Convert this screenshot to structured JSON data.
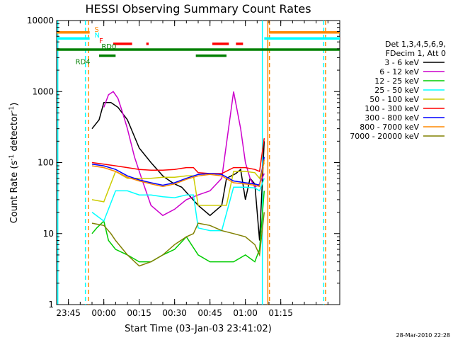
{
  "chart_data": {
    "type": "line",
    "title": "HESSI Observing Summary Count Rates",
    "xlabel": "Start Time (03-Jan-03 23:41:02)",
    "ylabel_main": "Count Rate (s",
    "ylabel_sup1": "-1",
    "ylabel_mid": " detector",
    "ylabel_sup2": "-1",
    "ylabel_end": ")",
    "yscale": "log",
    "ylim": [
      1,
      10000
    ],
    "xlim_minutes": [
      -20,
      100
    ],
    "x_ticks": [
      {
        "m": -15,
        "label": "23:45"
      },
      {
        "m": 0,
        "label": "00:00"
      },
      {
        "m": 15,
        "label": "00:15"
      },
      {
        "m": 30,
        "label": "00:30"
      },
      {
        "m": 45,
        "label": "00:45"
      },
      {
        "m": 60,
        "label": "01:00"
      },
      {
        "m": 75,
        "label": "01:15"
      }
    ],
    "y_ticks": [
      {
        "v": 1,
        "label": "1"
      },
      {
        "v": 10,
        "label": "10"
      },
      {
        "v": 100,
        "label": "100"
      },
      {
        "v": 1000,
        "label": "1000"
      },
      {
        "v": 10000,
        "label": "10000"
      }
    ],
    "legend_header": [
      "Det 1,3,4,5,6,9,",
      "FDecim 1, Att 0"
    ],
    "legend_position": "right",
    "series": [
      {
        "name": "3 - 6 keV",
        "color": "#000000",
        "x": [
          -5,
          -2,
          0,
          3,
          6,
          10,
          15,
          20,
          25,
          28,
          30,
          33,
          36,
          40,
          45,
          50,
          52,
          56,
          58,
          60,
          62,
          64,
          66,
          68
        ],
        "y": [
          300,
          400,
          700,
          700,
          600,
          400,
          160,
          100,
          65,
          55,
          50,
          45,
          35,
          25,
          18,
          25,
          60,
          70,
          80,
          30,
          60,
          50,
          8,
          200
        ]
      },
      {
        "name": "6 - 12 keV",
        "color": "#cc00cc",
        "x": [
          0,
          2,
          4,
          6,
          8,
          10,
          13,
          16,
          20,
          25,
          30,
          35,
          40,
          45,
          50,
          55,
          58,
          60,
          62,
          64,
          66,
          68
        ],
        "y": [
          600,
          900,
          1000,
          800,
          500,
          300,
          120,
          60,
          25,
          18,
          22,
          30,
          35,
          40,
          60,
          1000,
          300,
          100,
          60,
          45,
          50,
          70
        ]
      },
      {
        "name": "12 - 25 keV",
        "color": "#00cc00",
        "x": [
          -5,
          -3,
          0,
          2,
          5,
          10,
          15,
          20,
          25,
          30,
          35,
          40,
          45,
          50,
          55,
          60,
          64,
          66,
          68
        ],
        "y": [
          10,
          12,
          15,
          8,
          6,
          5,
          4,
          4,
          5,
          6,
          9,
          5,
          4,
          4,
          4,
          5,
          4,
          6,
          40
        ]
      },
      {
        "name": "25 - 50 keV",
        "color": "#00ffff",
        "x": [
          -5,
          0,
          5,
          10,
          15,
          20,
          25,
          30,
          35,
          38,
          40,
          45,
          50,
          55,
          60,
          64,
          66,
          68
        ],
        "y": [
          20,
          15,
          40,
          40,
          35,
          35,
          33,
          32,
          35,
          35,
          12,
          11,
          11,
          45,
          45,
          44,
          40,
          60
        ]
      },
      {
        "name": "50 - 100 keV",
        "color": "#cccc00",
        "x": [
          -5,
          0,
          5,
          10,
          15,
          20,
          25,
          30,
          35,
          38,
          40,
          45,
          50,
          52,
          55,
          60,
          64,
          66,
          68
        ],
        "y": [
          30,
          28,
          75,
          60,
          60,
          60,
          62,
          62,
          65,
          65,
          25,
          25,
          25,
          25,
          75,
          75,
          72,
          60,
          100
        ]
      },
      {
        "name": "100 - 300 keV",
        "color": "#ff0000",
        "x": [
          -5,
          0,
          5,
          10,
          15,
          20,
          25,
          30,
          35,
          38,
          40,
          45,
          50,
          55,
          60,
          64,
          66,
          68
        ],
        "y": [
          100,
          95,
          90,
          85,
          80,
          78,
          78,
          80,
          85,
          85,
          72,
          70,
          70,
          85,
          85,
          80,
          75,
          220
        ]
      },
      {
        "name": "300 - 800 keV",
        "color": "#0000ff",
        "x": [
          -5,
          0,
          5,
          10,
          15,
          20,
          25,
          30,
          35,
          40,
          45,
          50,
          55,
          60,
          64,
          66,
          68
        ],
        "y": [
          95,
          90,
          80,
          65,
          57,
          52,
          48,
          52,
          60,
          68,
          70,
          68,
          55,
          52,
          50,
          48,
          120
        ]
      },
      {
        "name": "800 - 7000 keV",
        "color": "#ff8800",
        "x": [
          -5,
          0,
          5,
          10,
          15,
          20,
          25,
          30,
          35,
          40,
          45,
          50,
          55,
          60,
          64,
          66,
          68
        ],
        "y": [
          90,
          85,
          75,
          62,
          55,
          50,
          46,
          50,
          58,
          65,
          68,
          65,
          52,
          50,
          48,
          46,
          110
        ]
      },
      {
        "name": "7000 - 20000 keV",
        "color": "#808000",
        "x": [
          -5,
          0,
          3,
          5,
          10,
          15,
          20,
          25,
          30,
          35,
          38,
          40,
          45,
          50,
          55,
          60,
          64,
          66,
          68
        ],
        "y": [
          14,
          13,
          10,
          8,
          5,
          3.5,
          4,
          5,
          7,
          9,
          10,
          14,
          13,
          11,
          10,
          9,
          7,
          5,
          20
        ]
      }
    ],
    "flags": [
      {
        "label": "S",
        "color": "#ff8800",
        "level": 6800,
        "segments": [
          [
            -20,
            -6
          ],
          [
            70,
            100
          ]
        ]
      },
      {
        "label": "N",
        "color": "#00ffff",
        "level": 5600,
        "segments": [
          [
            -20,
            -6
          ],
          [
            68,
            100
          ]
        ]
      },
      {
        "label": "F",
        "color": "#ff0000",
        "level": 4700,
        "segments": [
          [
            4,
            12
          ],
          [
            18,
            19
          ],
          [
            46,
            53
          ],
          [
            56,
            59
          ]
        ]
      },
      {
        "label": "RD0",
        "color": "#008000",
        "level": 3900,
        "segments": [
          [
            -20,
            100
          ]
        ]
      },
      {
        "label": "RD4",
        "color": "#008000",
        "level": 3200,
        "segments": [
          [
            -2,
            5
          ],
          [
            39,
            52
          ]
        ]
      }
    ],
    "vlines": [
      {
        "m": -19.5,
        "color": "#00ffff",
        "dash": false
      },
      {
        "m": -7.8,
        "color": "#00ffff",
        "dash": true
      },
      {
        "m": -6.5,
        "color": "#ff8800",
        "dash": true
      },
      {
        "m": 67.2,
        "color": "#00ffff",
        "dash": false
      },
      {
        "m": 69.5,
        "color": "#ff8800",
        "dash": false
      },
      {
        "m": 70.2,
        "color": "#ff8800",
        "dash": true
      },
      {
        "m": 93.2,
        "color": "#00ffff",
        "dash": true
      },
      {
        "m": 94.0,
        "color": "#ff8800",
        "dash": true
      }
    ],
    "footer": "28-Mar-2010 22:28"
  }
}
